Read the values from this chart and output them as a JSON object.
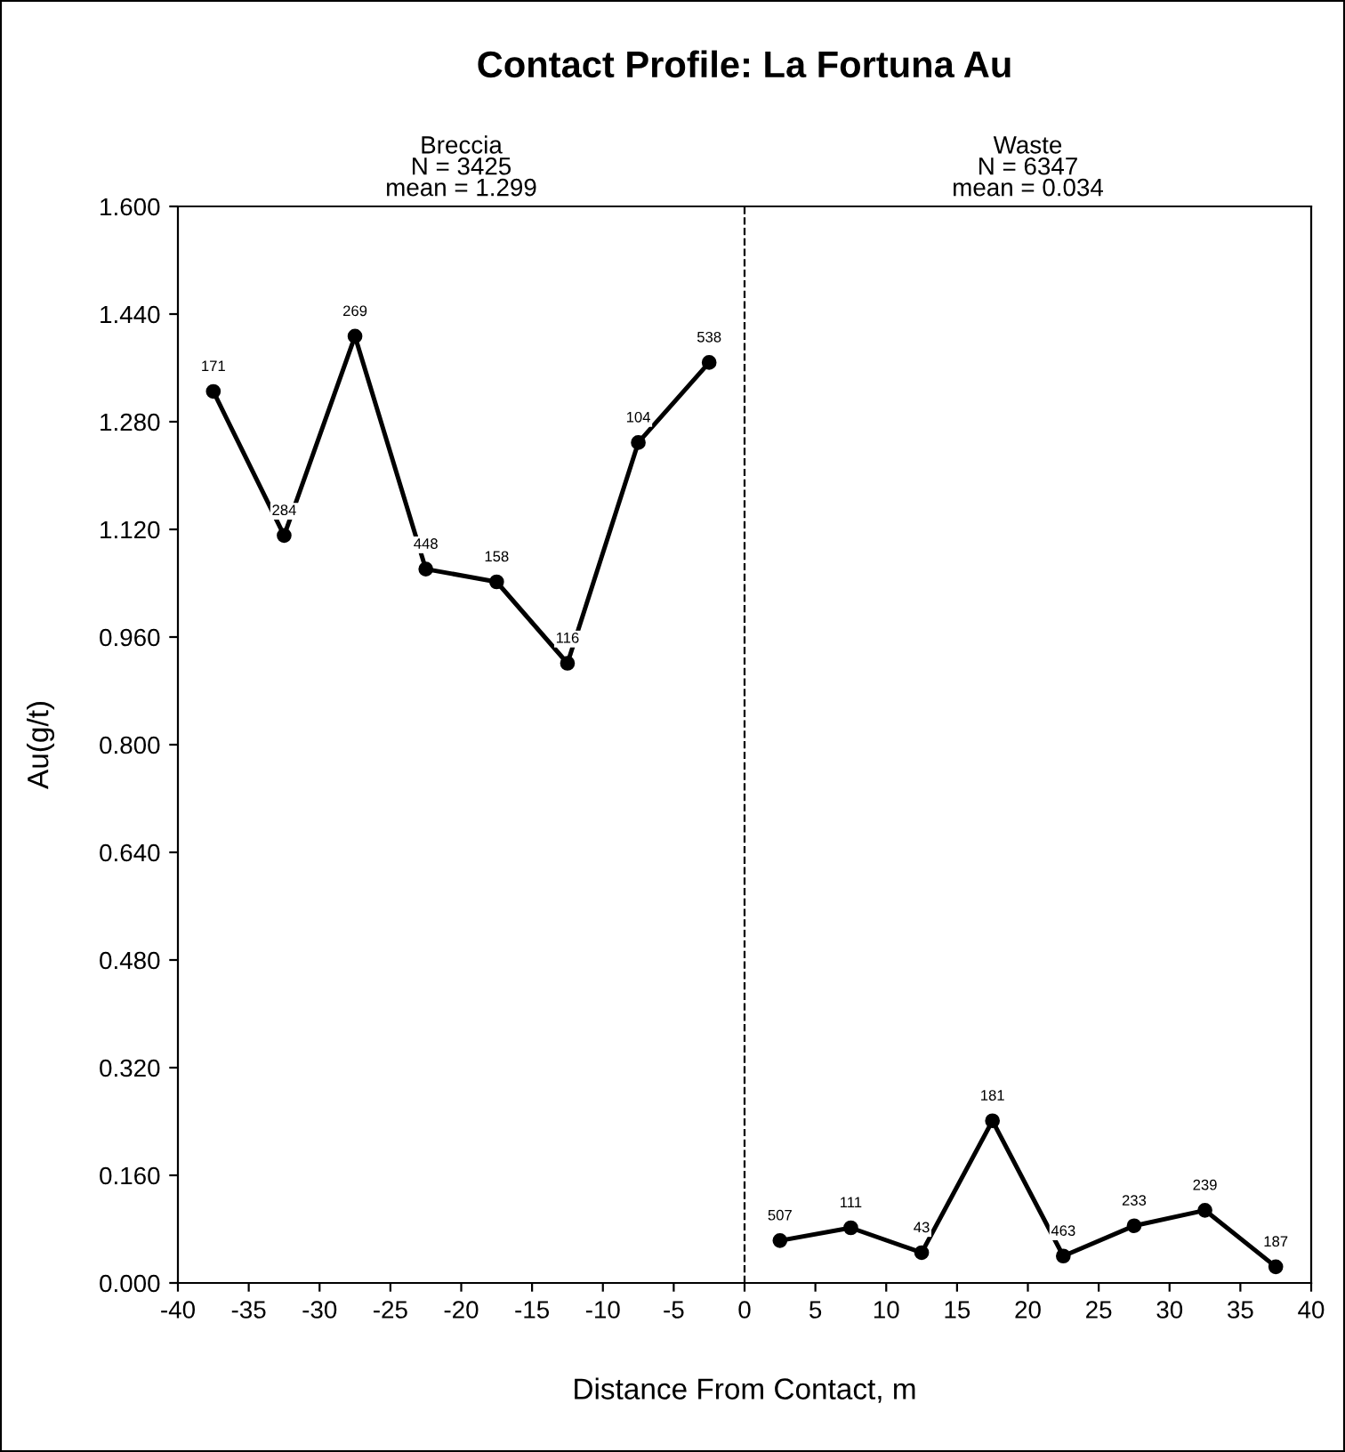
{
  "chart_data": {
    "type": "line",
    "title": "Contact Profile: La Fortuna Au",
    "xlabel": "Distance From Contact, m",
    "ylabel": "Au(g/t)",
    "annotations": [
      "Breccia\nN = 3425\nmean = 1.299",
      "Waste\nN = 6347\nmean = 0.034",
      {
        "text": "171",
        "x": -37.5,
        "y": 1.325
      },
      {
        "text": "284",
        "x": -32.5,
        "y": 1.111
      },
      {
        "text": "269",
        "x": -27.5,
        "y": 1.407
      },
      {
        "text": "448",
        "x": -22.5,
        "y": 1.061
      },
      {
        "text": "158",
        "x": -17.5,
        "y": 1.042
      },
      {
        "text": "116",
        "x": -12.5,
        "y": 0.921
      },
      {
        "text": "104",
        "x": -7.5,
        "y": 1.249
      },
      {
        "text": "538",
        "x": -2.5,
        "y": 1.368
      },
      {
        "text": "507",
        "x": 2.5,
        "y": 0.063
      },
      {
        "text": "111",
        "x": 7.5,
        "y": 0.082
      },
      {
        "text": "43",
        "x": 12.5,
        "y": 0.045
      },
      {
        "text": "181",
        "x": 17.5,
        "y": 0.241
      },
      {
        "text": "463",
        "x": 22.5,
        "y": 0.04
      },
      {
        "text": "233",
        "x": 27.5,
        "y": 0.085
      },
      {
        "text": "239",
        "x": 32.5,
        "y": 0.108
      },
      {
        "text": "187",
        "x": 37.5,
        "y": 0.024
      }
    ],
    "series": [
      {
        "color": "#000000",
        "x": [
          -37.5,
          -32.5,
          -27.5,
          -22.5,
          -17.5,
          -12.5,
          -7.5,
          -2.5
        ],
        "values": [
          1.325,
          1.111,
          1.407,
          1.061,
          1.042,
          0.921,
          1.249,
          1.368
        ]
      },
      {
        "color": "#000000",
        "x": [
          2.5,
          7.5,
          12.5,
          17.5,
          22.5,
          27.5,
          32.5,
          37.5
        ],
        "values": [
          0.063,
          0.082,
          0.045,
          0.241,
          0.04,
          0.085,
          0.108,
          0.024
        ]
      }
    ],
    "xlim": [
      -40,
      40
    ],
    "xticks": [
      -40,
      -35,
      -30,
      -25,
      -20,
      -15,
      -10,
      -5,
      0,
      5,
      10,
      15,
      20,
      25,
      30,
      35,
      40
    ],
    "ylim": [
      0,
      1.6
    ],
    "yticks": [
      {
        "value": 0,
        "label": "0.000"
      },
      {
        "value": 0.16,
        "label": "0.160"
      },
      {
        "value": 0.32,
        "label": "0.320"
      },
      {
        "value": 0.48,
        "label": "0.480"
      },
      {
        "value": 0.64,
        "label": "0.640"
      },
      {
        "value": 0.8,
        "label": "0.800"
      },
      {
        "value": 0.96,
        "label": "0.960"
      },
      {
        "value": 1.12,
        "label": "1.120"
      },
      {
        "value": 1.28,
        "label": "1.280"
      },
      {
        "value": 1.44,
        "label": "1.440"
      },
      {
        "value": 1.6,
        "label": "1.600"
      }
    ],
    "ref_lines": [
      {
        "axis": "x",
        "value": 0,
        "line_style": "dashed",
        "color": "#000000"
      }
    ],
    "grid": false,
    "marker": "circle",
    "line_style": "solid"
  }
}
